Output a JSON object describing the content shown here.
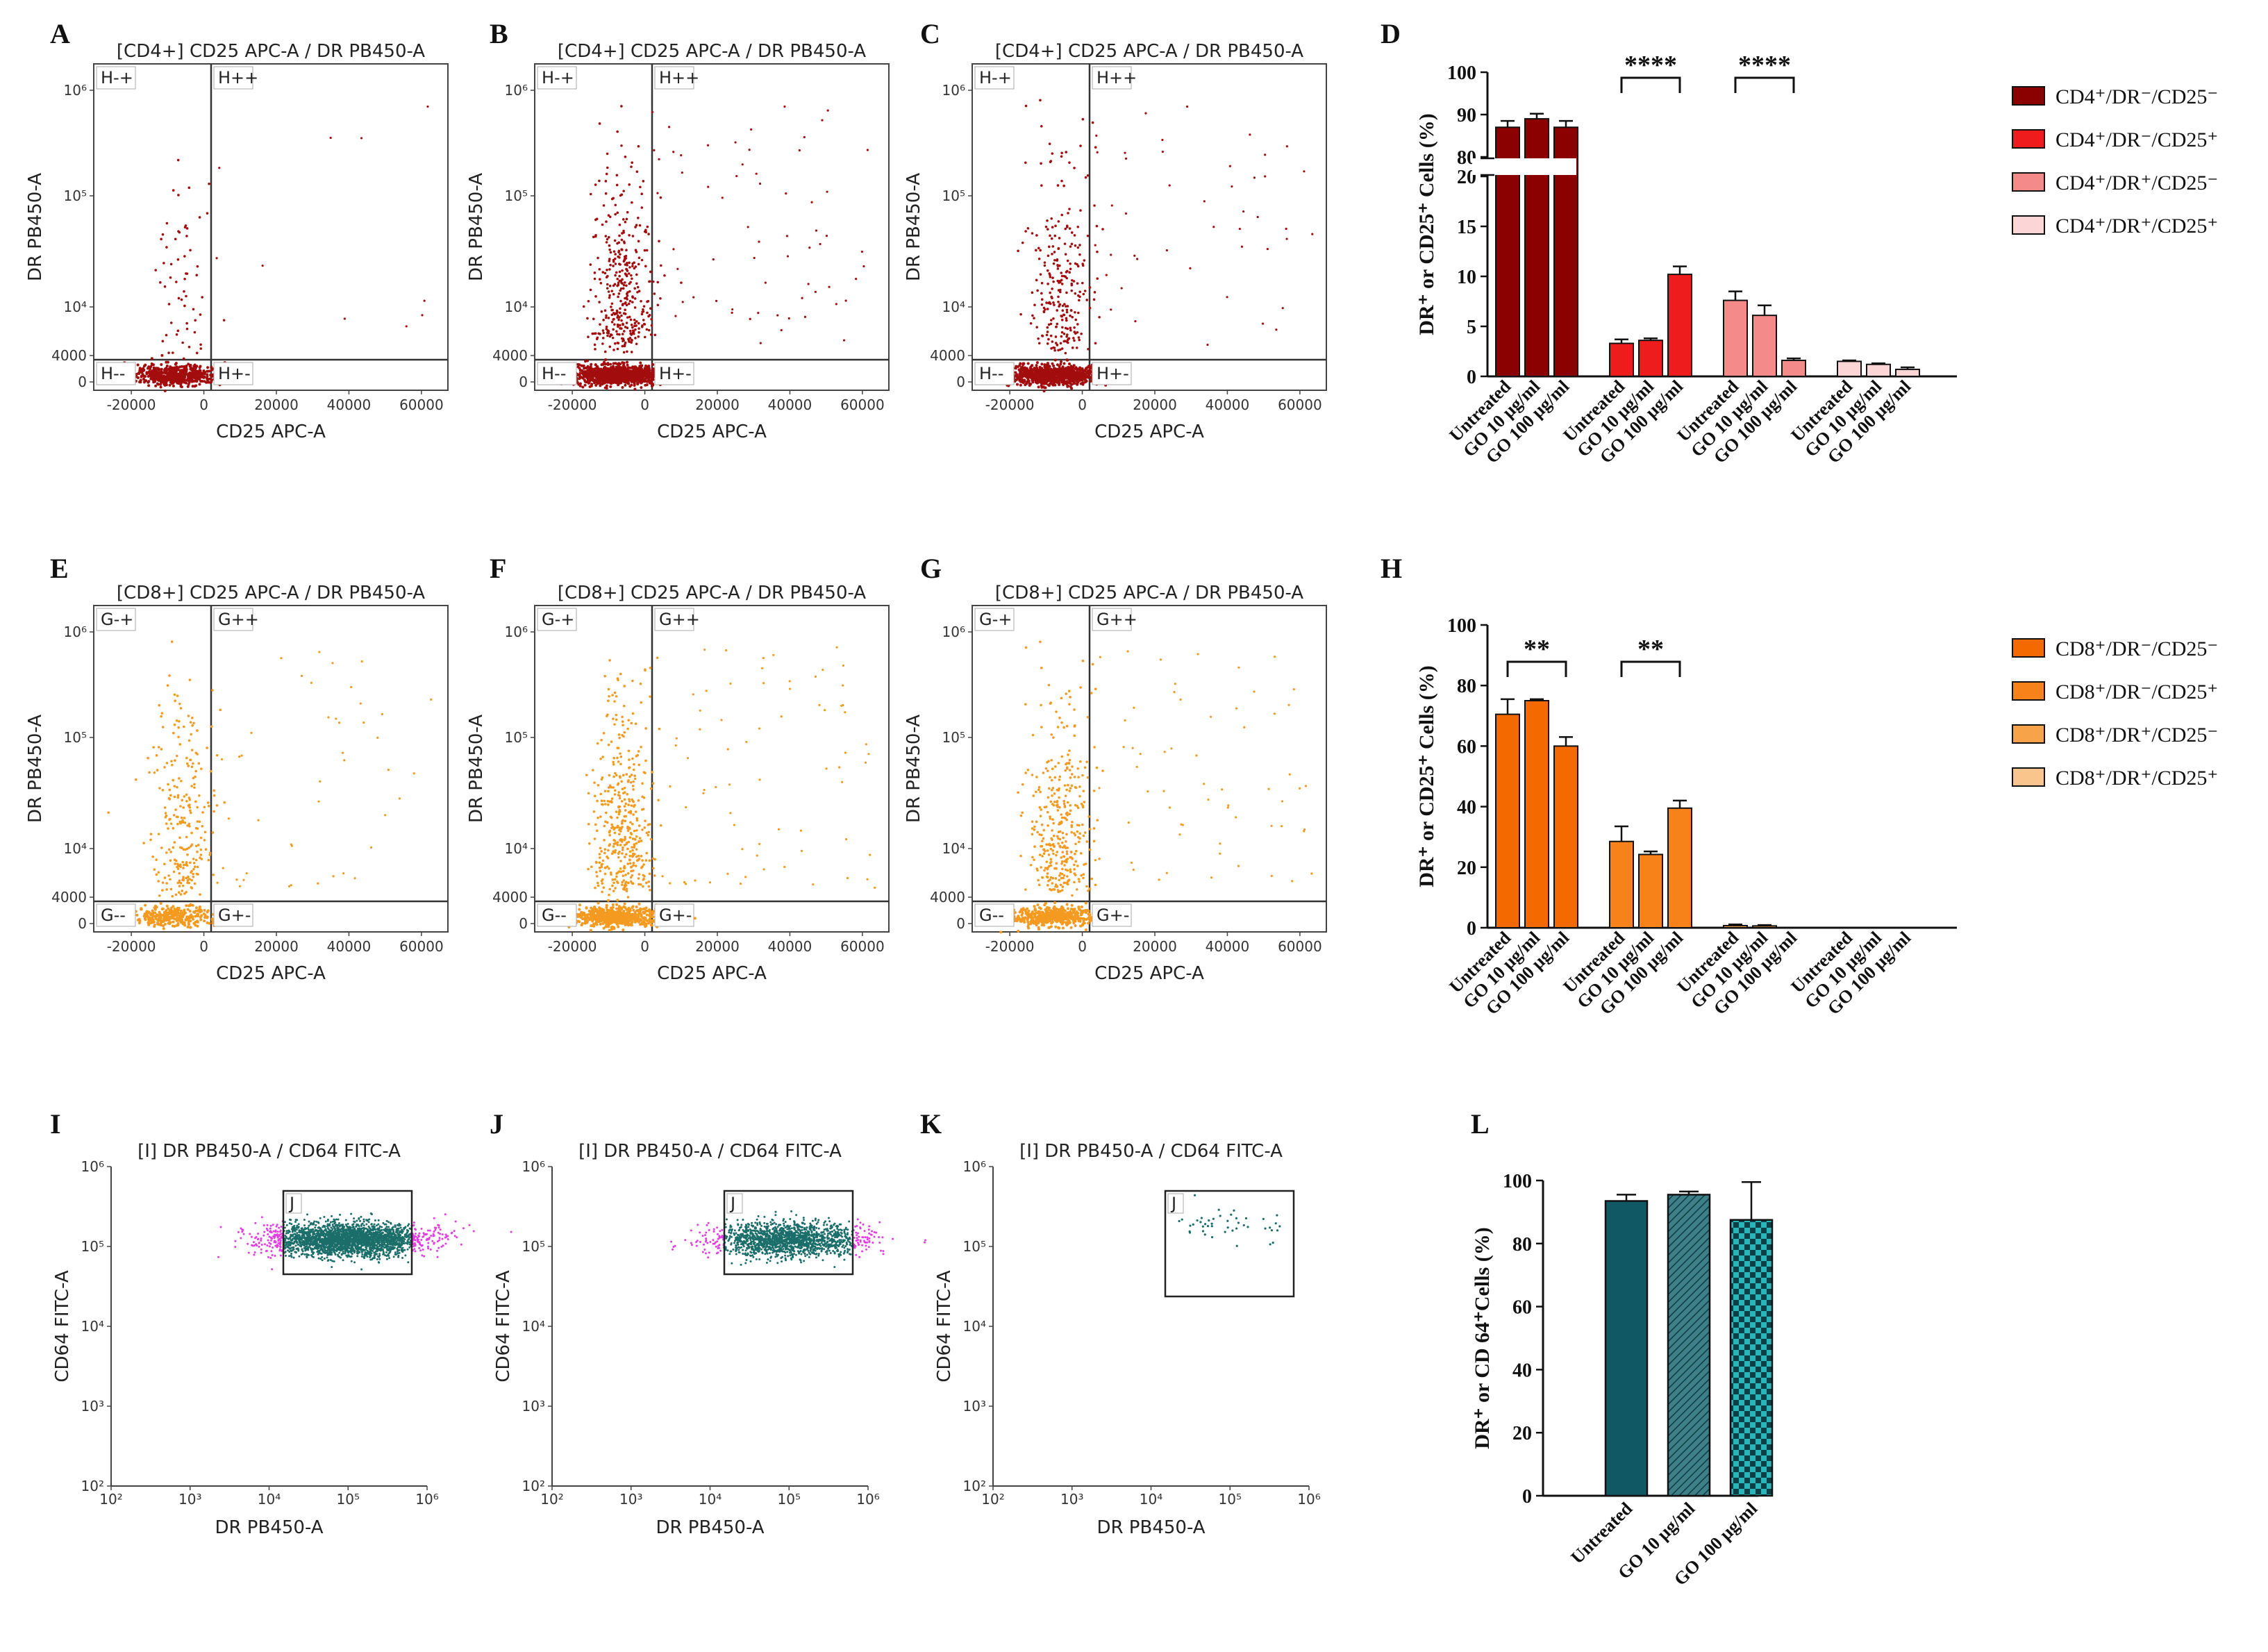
{
  "colors": {
    "cd4_dark": "#8b0000",
    "cd4_red": "#ee1c1c",
    "cd4_pink": "#f48a8a",
    "cd4_light": "#fcd6d6",
    "cd8_dark": "#f56a00",
    "cd8_mid": "#f7821a",
    "cd8_light": "#f7a34a",
    "cd8_pale": "#fac58c",
    "teal": "#0f5864",
    "flow_teal": "#1b6e6a",
    "magenta": "#e23ee2",
    "flow_red": "#a30d0d",
    "flow_orange": "#f49a20"
  },
  "panel_letters": {
    "A": "A",
    "B": "B",
    "C": "C",
    "D": "D",
    "E": "E",
    "F": "F",
    "G": "G",
    "H": "H",
    "I": "I",
    "J": "J",
    "K": "K",
    "L": "L"
  },
  "flow_cd4": {
    "titles": [
      "[CD4+] CD25 APC-A / DR PB450-A",
      "[CD4+] CD25 APC-A / DR PB450-A",
      "[CD4+] CD25 APC-A / DR PB450-A"
    ],
    "xlabel": "CD25 APC-A",
    "ylabel": "DR PB450-A",
    "xticks": [
      "-20000",
      "0",
      "20000",
      "40000",
      "60000"
    ],
    "yticks": [
      "10⁶",
      "10⁵",
      "10⁴",
      "4000",
      "0"
    ],
    "quadrants": [
      "H-+",
      "H++",
      "H--",
      "H+-"
    ]
  },
  "flow_cd8": {
    "titles": [
      "[CD8+] CD25 APC-A / DR PB450-A",
      "[CD8+] CD25 APC-A / DR PB450-A",
      "[CD8+] CD25 APC-A / DR PB450-A"
    ],
    "xlabel": "CD25 APC-A",
    "ylabel": "DR PB450-A",
    "xticks": [
      "-20000",
      "0",
      "20000",
      "40000",
      "60000"
    ],
    "yticks": [
      "10⁶",
      "10⁵",
      "10⁴",
      "4000",
      "0"
    ],
    "quadrants": [
      "G-+",
      "G++",
      "G--",
      "G+-"
    ]
  },
  "flow_cd64": {
    "titles": [
      "[I] DR PB450-A / CD64 FITC-A",
      "[I] DR PB450-A / CD64 FITC-A",
      "[I] DR PB450-A / CD64 FITC-A"
    ],
    "xlabel": "DR PB450-A",
    "ylabel": "CD64 FITC-A",
    "xticks": [
      "10²",
      "10³",
      "10⁴",
      "10⁵",
      "10⁶"
    ],
    "yticks": [
      "10⁶",
      "10⁵",
      "10⁴",
      "10³",
      "10²"
    ],
    "gate": "J"
  },
  "chart_data": [
    {
      "panel": "D",
      "type": "bar",
      "ylabel": "DR⁺ or CD25⁺ Cells (%)",
      "ylim": [
        0,
        100
      ],
      "axis_break": [
        20,
        80
      ],
      "yticks": [
        0,
        5,
        10,
        15,
        20,
        80,
        90,
        100
      ],
      "categories": [
        "Untreated",
        "GO 10 µg/ml",
        "GO 100 µg/ml"
      ],
      "series": [
        {
          "name": "CD4⁺/DR⁻/CD25⁻",
          "values": [
            87,
            89,
            87
          ],
          "errors": [
            1.5,
            1.2,
            1.5
          ]
        },
        {
          "name": "CD4⁺/DR⁻/CD25⁺",
          "values": [
            3.3,
            3.6,
            10.2
          ],
          "errors": [
            0.4,
            0.2,
            0.8
          ]
        },
        {
          "name": "CD4⁺/DR⁺/CD25⁻",
          "values": [
            7.6,
            6.1,
            1.6
          ],
          "errors": [
            0.9,
            1.0,
            0.2
          ]
        },
        {
          "name": "CD4⁺/DR⁺/CD25⁺",
          "values": [
            1.5,
            1.2,
            0.7
          ],
          "errors": [
            0.1,
            0.1,
            0.2
          ]
        }
      ],
      "significance": [
        {
          "group": 1,
          "label": "****"
        },
        {
          "group": 2,
          "label": "****"
        }
      ]
    },
    {
      "panel": "H",
      "type": "bar",
      "ylabel": "DR⁺ or CD25⁺ Cells (%)",
      "ylim": [
        0,
        100
      ],
      "yticks": [
        0,
        20,
        40,
        60,
        80,
        100
      ],
      "categories": [
        "Untreated",
        "GO 10 µg/ml",
        "GO 100 µg/ml"
      ],
      "series": [
        {
          "name": "CD8⁺/DR⁻/CD25⁻",
          "values": [
            70.5,
            75,
            60
          ],
          "errors": [
            5,
            0.5,
            3
          ]
        },
        {
          "name": "CD8⁺/DR⁻/CD25⁺",
          "values": [
            28.5,
            24.2,
            39.5
          ],
          "errors": [
            5,
            1,
            2.5
          ]
        },
        {
          "name": "CD8⁺/DR⁺/CD25⁻",
          "values": [
            0.7,
            0.6,
            0.1
          ],
          "errors": [
            0.4,
            0.3,
            0
          ]
        },
        {
          "name": "CD8⁺/DR⁺/CD25⁺",
          "values": [
            0.1,
            0.1,
            0.1
          ],
          "errors": [
            0,
            0,
            0
          ]
        }
      ],
      "significance": [
        {
          "group": 0,
          "label": "**"
        },
        {
          "group": 1,
          "label": "**"
        }
      ]
    },
    {
      "panel": "L",
      "type": "bar",
      "ylabel": "DR⁺ or CD 64⁺Cells (%)",
      "ylim": [
        0,
        100
      ],
      "yticks": [
        0,
        20,
        40,
        60,
        80,
        100
      ],
      "categories": [
        "Untreated",
        "GO 10 µg/ml",
        "GO 100 µg/ml"
      ],
      "values": [
        93.5,
        95.5,
        87.5
      ],
      "errors": [
        2,
        1,
        12
      ]
    }
  ]
}
